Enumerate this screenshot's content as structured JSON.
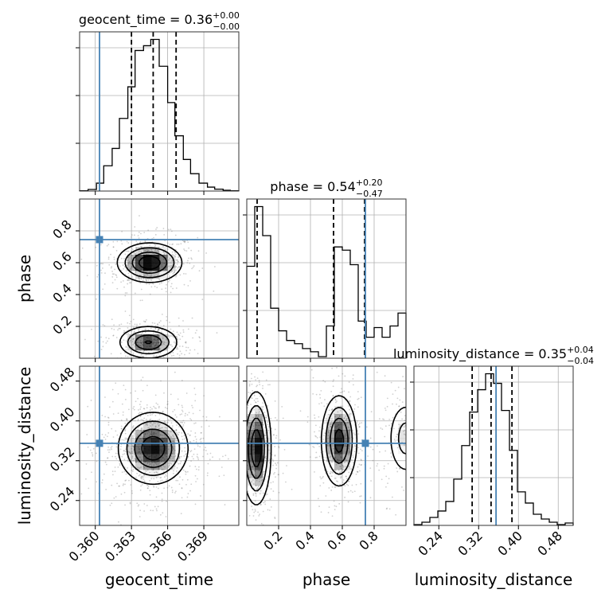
{
  "chart_data": {
    "type": "corner",
    "parameters": [
      "geocent_time",
      "phase",
      "luminosity_distance"
    ],
    "titles": {
      "geocent_time": {
        "name": "geocent_time",
        "median": "0.36",
        "plus": "+0.00",
        "minus": "−0.00"
      },
      "phase": {
        "name": "phase",
        "median": "0.54",
        "plus": "+0.20",
        "minus": "−0.47"
      },
      "luminosity_distance": {
        "name": "luminosity_distance",
        "median": "0.35",
        "plus": "+0.04",
        "minus": "−0.04"
      }
    },
    "ranges": {
      "geocent_time": [
        0.3587,
        0.3719
      ],
      "phase": [
        0.0,
        1.0
      ],
      "luminosity_distance": [
        0.19,
        0.51
      ]
    },
    "ticks": {
      "geocent_time": [
        0.36,
        0.363,
        0.366,
        0.369
      ],
      "phase": [
        0.2,
        0.4,
        0.6,
        0.8
      ],
      "luminosity_distance": [
        0.24,
        0.32,
        0.4,
        0.48
      ]
    },
    "tick_labels": {
      "geocent_time": [
        "0.360",
        "0.363",
        "0.366",
        "0.369"
      ],
      "phase": [
        "0.2",
        "0.4",
        "0.6",
        "0.8"
      ],
      "luminosity_distance": [
        "0.24",
        "0.32",
        "0.40",
        "0.48"
      ]
    },
    "truths": {
      "geocent_time": 0.36035,
      "phase": 0.745,
      "luminosity_distance": 0.355
    },
    "quantiles": {
      "geocent_time": [
        0.363,
        0.3648,
        0.3667
      ],
      "phase": [
        0.065,
        0.545,
        0.74
      ],
      "luminosity_distance": [
        0.307,
        0.345,
        0.387
      ]
    },
    "histograms": {
      "geocent_time": {
        "edges": [
          0.3587,
          0.3594,
          0.3601,
          0.3607,
          0.3614,
          0.362,
          0.3627,
          0.3633,
          0.364,
          0.3646,
          0.3653,
          0.366,
          0.3666,
          0.3673,
          0.3679,
          0.3686,
          0.3693,
          0.3699,
          0.3706,
          0.3712,
          0.3719
        ],
        "counts": [
          0.2,
          1,
          5,
          16,
          27,
          46,
          66,
          89,
          92,
          96,
          79,
          56,
          35,
          20,
          11,
          5,
          2.5,
          1.2,
          0.5,
          0.2
        ]
      },
      "phase": {
        "edges": [
          0.0,
          0.05,
          0.1,
          0.15,
          0.2,
          0.25,
          0.3,
          0.35,
          0.4,
          0.45,
          0.5,
          0.55,
          0.6,
          0.65,
          0.7,
          0.75,
          0.8,
          0.85,
          0.9,
          0.95,
          1.0
        ],
        "counts": [
          57,
          94,
          76,
          31,
          17,
          11,
          9,
          6,
          4,
          1,
          20,
          69,
          67,
          58,
          23,
          13,
          19,
          13,
          20,
          28
        ]
      },
      "luminosity_distance": {
        "edges": [
          0.19,
          0.206,
          0.222,
          0.238,
          0.254,
          0.27,
          0.286,
          0.302,
          0.318,
          0.334,
          0.35,
          0.366,
          0.382,
          0.398,
          0.414,
          0.43,
          0.446,
          0.462,
          0.478,
          0.494,
          0.51
        ],
        "counts": [
          0.5,
          2,
          5,
          9,
          15,
          29,
          50,
          71,
          85,
          95,
          89,
          72,
          47,
          21,
          14,
          7,
          4,
          2,
          0.5,
          1.5
        ]
      }
    },
    "density_2d": {
      "phase_vs_geocent_time": [
        {
          "center": [
            0.3645,
            0.6
          ],
          "sigma": [
            0.0013,
            0.06
          ],
          "weight": 0.55
        },
        {
          "center": [
            0.3644,
            0.1
          ],
          "sigma": [
            0.0012,
            0.05
          ],
          "weight": 0.45
        }
      ],
      "luminosity_distance_vs_geocent_time": [
        {
          "center": [
            0.3648,
            0.345
          ],
          "sigma": [
            0.0014,
            0.035
          ],
          "weight": 1.0
        }
      ],
      "luminosity_distance_vs_phase": [
        {
          "center": [
            0.06,
            0.345
          ],
          "sigma": [
            0.045,
            0.055
          ],
          "weight": 0.5
        },
        {
          "center": [
            0.58,
            0.36
          ],
          "sigma": [
            0.055,
            0.045
          ],
          "weight": 0.45
        },
        {
          "center": [
            1.0,
            0.365
          ],
          "sigma": [
            0.06,
            0.04
          ],
          "weight": 0.2
        }
      ]
    },
    "contour_levels": [
      0.12,
      0.3,
      0.55,
      0.8
    ],
    "colors": {
      "truth": "#4682b4",
      "hist_line": "#000000",
      "grid": "#b0b0b0",
      "density": "#000000"
    },
    "grid": true
  }
}
